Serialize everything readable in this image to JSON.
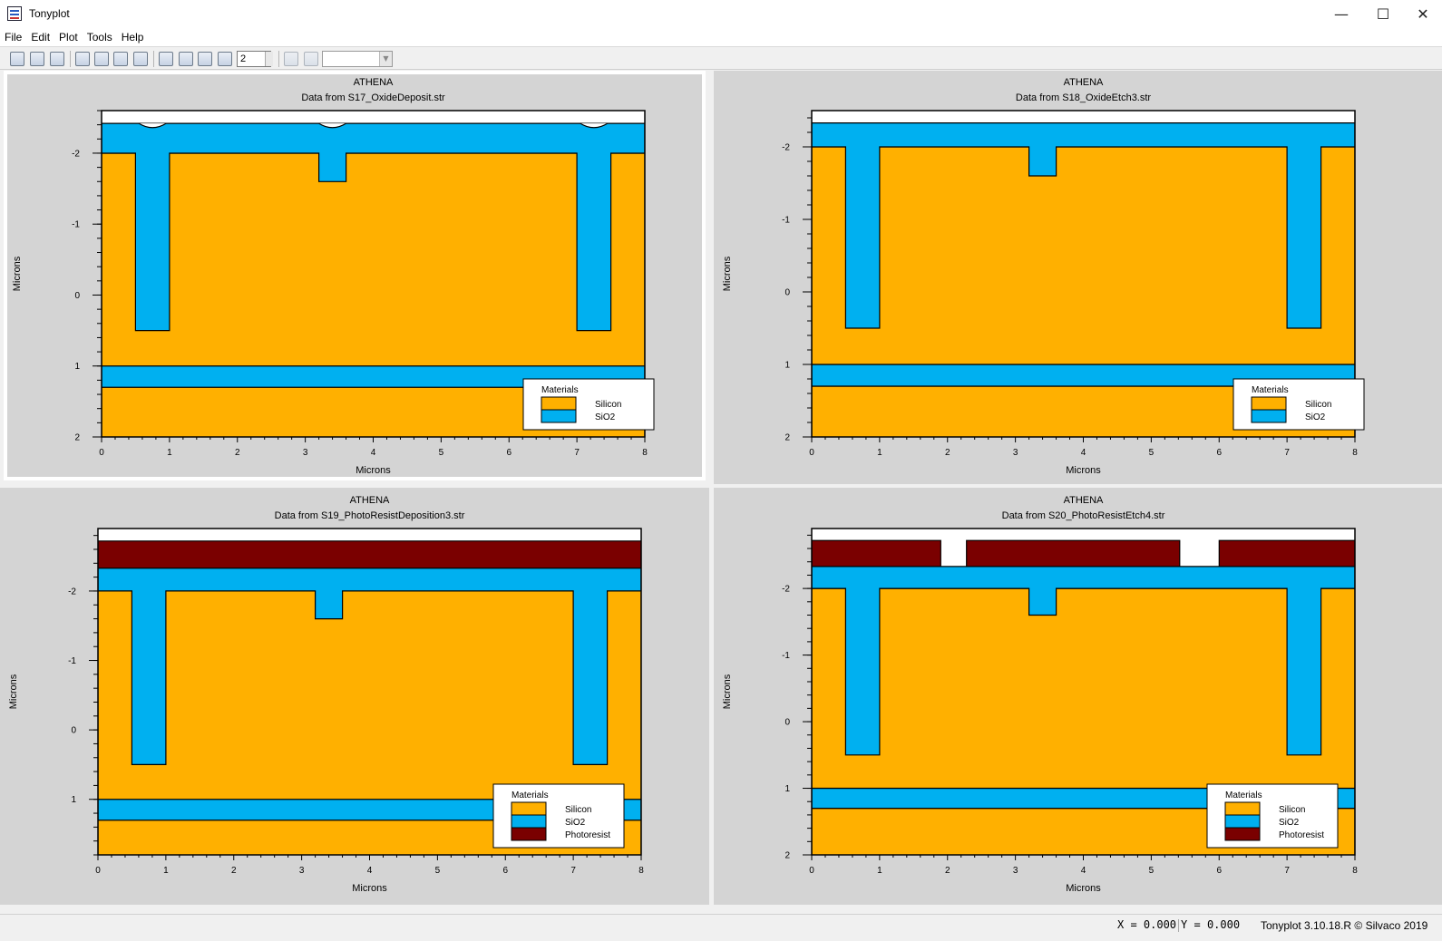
{
  "window": {
    "title": "Tonyplot",
    "minimize": "—",
    "maximize": "☐",
    "close": "✕"
  },
  "menu": [
    "File",
    "Edit",
    "Plot",
    "Tools",
    "Help"
  ],
  "toolbar": {
    "zoom_value": "2",
    "icons": [
      "load-icon",
      "save-icon",
      "print-icon",
      "select-icon",
      "copy-icon",
      "paste-icon",
      "duplicate-icon",
      "pan-icon",
      "zoom-in-icon",
      "zoom-out-icon",
      "zoom-box-icon",
      "prev-plot-icon",
      "next-plot-icon"
    ]
  },
  "legend_title": "Materials",
  "colors": {
    "Silicon": "#FFB000",
    "SiO2": "#00B0F0",
    "Photoresist": "#7A0000",
    "void": "#FFFFFF"
  },
  "plots": [
    {
      "id": "s17",
      "title": "ATHENA",
      "subtitle": "Data from S17_OxideDeposit.str",
      "xlabel": "Microns",
      "ylabel": "Microns",
      "selected": true,
      "xlim": [
        0,
        8
      ],
      "ylim": [
        -2.6,
        2
      ],
      "xticks": [
        "0",
        "1",
        "2",
        "3",
        "4",
        "5",
        "6",
        "7",
        "8"
      ],
      "yticks": [
        {
          "v": -2,
          "t": "-2"
        },
        {
          "v": -1,
          "t": "-1"
        },
        {
          "v": 0,
          "t": "0"
        },
        {
          "v": 1,
          "t": "1"
        },
        {
          "v": 2,
          "t": "2"
        }
      ],
      "legend": [
        "Silicon",
        "SiO2"
      ]
    },
    {
      "id": "s18",
      "title": "ATHENA",
      "subtitle": "Data from S18_OxideEtch3.str",
      "xlabel": "Microns",
      "ylabel": "Microns",
      "selected": false,
      "xlim": [
        0,
        8
      ],
      "ylim": [
        -2.5,
        2
      ],
      "xticks": [
        "0",
        "1",
        "2",
        "3",
        "4",
        "5",
        "6",
        "7",
        "8"
      ],
      "yticks": [
        {
          "v": -2,
          "t": "-2"
        },
        {
          "v": -1,
          "t": "-1"
        },
        {
          "v": 0,
          "t": "0"
        },
        {
          "v": 1,
          "t": "1"
        },
        {
          "v": 2,
          "t": "2"
        }
      ],
      "legend": [
        "Silicon",
        "SiO2"
      ]
    },
    {
      "id": "s19",
      "title": "ATHENA",
      "subtitle": "Data from S19_PhotoResistDeposition3.str",
      "xlabel": "Microns",
      "ylabel": "Microns",
      "selected": false,
      "xlim": [
        0,
        8
      ],
      "ylim": [
        -2.9,
        1.8
      ],
      "xticks": [
        "0",
        "1",
        "2",
        "3",
        "4",
        "5",
        "6",
        "7",
        "8"
      ],
      "yticks": [
        {
          "v": -2,
          "t": "-2"
        },
        {
          "v": -1,
          "t": "-1"
        },
        {
          "v": 0,
          "t": "0"
        },
        {
          "v": 1,
          "t": "1"
        }
      ],
      "legend": [
        "Silicon",
        "SiO2",
        "Photoresist"
      ]
    },
    {
      "id": "s20",
      "title": "ATHENA",
      "subtitle": "Data from S20_PhotoResistEtch4.str",
      "xlabel": "Microns",
      "ylabel": "Microns",
      "selected": false,
      "xlim": [
        0,
        8
      ],
      "ylim": [
        -2.9,
        2
      ],
      "xticks": [
        "0",
        "1",
        "2",
        "3",
        "4",
        "5",
        "6",
        "7",
        "8"
      ],
      "yticks": [
        {
          "v": -2,
          "t": "-2"
        },
        {
          "v": -1,
          "t": "-1"
        },
        {
          "v": 0,
          "t": "0"
        },
        {
          "v": 1,
          "t": "1"
        },
        {
          "v": 2,
          "t": "2"
        }
      ],
      "legend": [
        "Silicon",
        "SiO2",
        "Photoresist"
      ]
    }
  ],
  "status": {
    "x_label": "X = ",
    "x_value": "0.000",
    "y_label": "Y = ",
    "y_value": "0.000",
    "version": "Tonyplot 3.10.18.R © Silvaco 2019"
  }
}
